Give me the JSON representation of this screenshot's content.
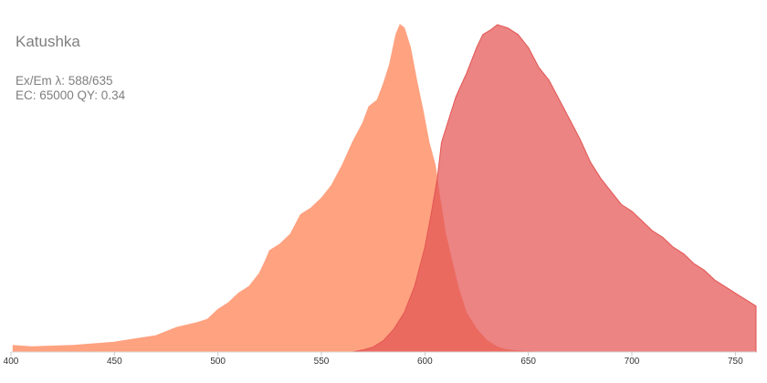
{
  "header": {
    "protein": "Katushka",
    "exem_line": "Ex/Em λ: 588/635",
    "stats_line": "EC: 65000  QY: 0.34"
  },
  "chart_data": {
    "type": "area",
    "x_range": [
      400,
      760
    ],
    "y_range": [
      0,
      1
    ],
    "x_ticks": [
      400,
      450,
      500,
      550,
      600,
      650,
      700,
      750
    ],
    "series": [
      {
        "color": "#ffa280",
        "points": [
          [
            401,
            0.02
          ],
          [
            405,
            0.018
          ],
          [
            410,
            0.016
          ],
          [
            420,
            0.018
          ],
          [
            430,
            0.02
          ],
          [
            440,
            0.025
          ],
          [
            450,
            0.03
          ],
          [
            460,
            0.04
          ],
          [
            470,
            0.05
          ],
          [
            480,
            0.075
          ],
          [
            490,
            0.09
          ],
          [
            495,
            0.1
          ],
          [
            500,
            0.13
          ],
          [
            505,
            0.15
          ],
          [
            510,
            0.18
          ],
          [
            515,
            0.2
          ],
          [
            520,
            0.24
          ],
          [
            523,
            0.28
          ],
          [
            525,
            0.31
          ],
          [
            530,
            0.33
          ],
          [
            535,
            0.36
          ],
          [
            540,
            0.42
          ],
          [
            545,
            0.44
          ],
          [
            550,
            0.47
          ],
          [
            555,
            0.51
          ],
          [
            560,
            0.57
          ],
          [
            565,
            0.64
          ],
          [
            570,
            0.7
          ],
          [
            573,
            0.75
          ],
          [
            577,
            0.77
          ],
          [
            580,
            0.82
          ],
          [
            583,
            0.88
          ],
          [
            586,
            0.97
          ],
          [
            588,
            1.0
          ],
          [
            590,
            0.99
          ],
          [
            593,
            0.93
          ],
          [
            596,
            0.83
          ],
          [
            599,
            0.74
          ],
          [
            602,
            0.64
          ],
          [
            605,
            0.57
          ],
          [
            607,
            0.48
          ],
          [
            610,
            0.36
          ],
          [
            613,
            0.28
          ],
          [
            616,
            0.2
          ],
          [
            620,
            0.12
          ],
          [
            625,
            0.07
          ],
          [
            630,
            0.035
          ],
          [
            635,
            0.015
          ],
          [
            640,
            0.006
          ],
          [
            645,
            0.003
          ],
          [
            655,
            0.0
          ]
        ]
      },
      {
        "color": "#e35553",
        "points": [
          [
            565,
            0.0
          ],
          [
            570,
            0.006
          ],
          [
            575,
            0.015
          ],
          [
            580,
            0.035
          ],
          [
            585,
            0.07
          ],
          [
            590,
            0.12
          ],
          [
            595,
            0.2
          ],
          [
            600,
            0.32
          ],
          [
            603,
            0.42
          ],
          [
            606,
            0.53
          ],
          [
            608,
            0.64
          ],
          [
            610,
            0.68
          ],
          [
            615,
            0.78
          ],
          [
            620,
            0.85
          ],
          [
            625,
            0.93
          ],
          [
            628,
            0.97
          ],
          [
            632,
            0.985
          ],
          [
            635,
            1.0
          ],
          [
            640,
            0.99
          ],
          [
            645,
            0.97
          ],
          [
            650,
            0.93
          ],
          [
            655,
            0.87
          ],
          [
            660,
            0.83
          ],
          [
            665,
            0.77
          ],
          [
            670,
            0.71
          ],
          [
            675,
            0.65
          ],
          [
            680,
            0.58
          ],
          [
            685,
            0.53
          ],
          [
            690,
            0.49
          ],
          [
            695,
            0.45
          ],
          [
            700,
            0.43
          ],
          [
            705,
            0.4
          ],
          [
            710,
            0.37
          ],
          [
            715,
            0.35
          ],
          [
            720,
            0.32
          ],
          [
            725,
            0.3
          ],
          [
            730,
            0.27
          ],
          [
            735,
            0.25
          ],
          [
            740,
            0.22
          ],
          [
            745,
            0.2
          ],
          [
            750,
            0.18
          ],
          [
            755,
            0.16
          ],
          [
            760,
            0.14
          ]
        ]
      }
    ]
  }
}
